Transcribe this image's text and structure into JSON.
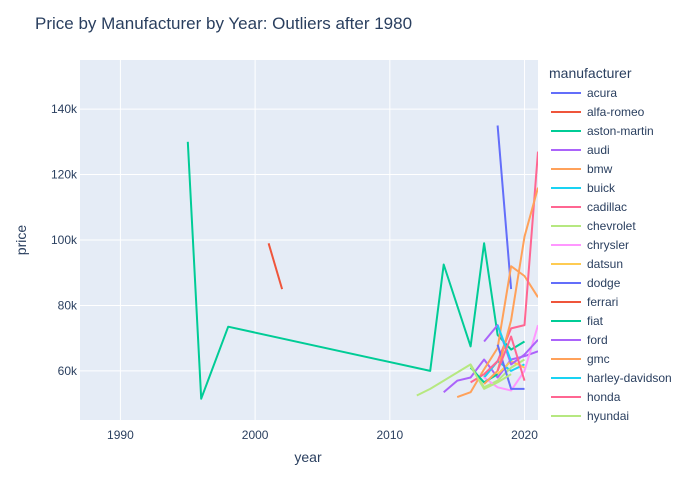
{
  "chart_data": {
    "type": "line",
    "title": "Price by Manufacturer by Year: Outliers after 1980",
    "xlabel": "year",
    "ylabel": "price",
    "xlim": [
      1987,
      2021
    ],
    "ylim": [
      45000,
      155000
    ],
    "x_ticks": [
      1990,
      2000,
      2010,
      2020
    ],
    "y_ticks": [
      60000,
      80000,
      100000,
      120000,
      140000
    ],
    "y_tick_labels": [
      "60k",
      "80k",
      "100k",
      "120k",
      "140k"
    ],
    "grid": true,
    "legend": {
      "title": "manufacturer",
      "placement": "right"
    },
    "series": [
      {
        "name": "acura",
        "color": "#636efa",
        "x": [
          2018,
          2019
        ],
        "y": [
          135000,
          85000
        ]
      },
      {
        "name": "alfa-romeo",
        "color": "#EF553B",
        "x": [
          2017,
          2018,
          2019
        ],
        "y": [
          58000,
          63000,
          60000
        ]
      },
      {
        "name": "aston-martin",
        "color": "#00cc96",
        "x": [
          1995,
          1996,
          1998,
          2013,
          2014,
          2016,
          2017,
          2018,
          2019,
          2020
        ],
        "y": [
          130000,
          51500,
          73500,
          60000,
          92500,
          67500,
          99000,
          71000,
          66500,
          69000
        ]
      },
      {
        "name": "audi",
        "color": "#ab63fa",
        "x": [
          2014,
          2015,
          2016,
          2017,
          2018,
          2019,
          2020,
          2021
        ],
        "y": [
          53500,
          57000,
          58000,
          63500,
          58000,
          63500,
          64500,
          66000
        ]
      },
      {
        "name": "bmw",
        "color": "#FFA15A",
        "x": [
          2015,
          2016,
          2017,
          2018,
          2019,
          2020,
          2021
        ],
        "y": [
          52000,
          53500,
          60500,
          67000,
          92000,
          89000,
          82500
        ]
      },
      {
        "name": "buick",
        "color": "#19d3f3",
        "x": [
          2017,
          2018,
          2019,
          2020
        ],
        "y": [
          58000,
          63000,
          60000,
          62000
        ]
      },
      {
        "name": "cadillac",
        "color": "#FF6692",
        "x": [
          2016,
          2017,
          2018,
          2019,
          2020,
          2021
        ],
        "y": [
          56500,
          59000,
          63000,
          73000,
          74000,
          127000
        ]
      },
      {
        "name": "chevrolet",
        "color": "#B6E880",
        "x": [
          2012,
          2013,
          2016,
          2017,
          2018,
          2019,
          2020
        ],
        "y": [
          52500,
          54500,
          62000,
          55000,
          57000,
          61000,
          63500
        ]
      },
      {
        "name": "chrysler",
        "color": "#FF97FF",
        "x": [
          2017,
          2018,
          2019,
          2020,
          2021
        ],
        "y": [
          58000,
          55000,
          54000,
          60000,
          74000
        ]
      },
      {
        "name": "datsun",
        "color": "#FECB52",
        "x": [
          2018,
          2019,
          2020
        ],
        "y": [
          59000,
          63000,
          61000
        ]
      },
      {
        "name": "dodge",
        "color": "#636efa",
        "x": [
          2018,
          2019,
          2020
        ],
        "y": [
          68000,
          54500,
          54500
        ]
      },
      {
        "name": "ferrari",
        "color": "#EF553B",
        "x": [
          2001,
          2002
        ],
        "y": [
          99000,
          85000
        ]
      },
      {
        "name": "fiat",
        "color": "#00cc96",
        "x": [
          2016,
          2017,
          2018
        ],
        "y": [
          61000,
          56500,
          59000
        ]
      },
      {
        "name": "ford",
        "color": "#ab63fa",
        "x": [
          2017,
          2018,
          2019,
          2020,
          2021
        ],
        "y": [
          69000,
          74000,
          62000,
          65000,
          69500
        ]
      },
      {
        "name": "gmc",
        "color": "#FFA15A",
        "x": [
          2017,
          2018,
          2019,
          2020,
          2021
        ],
        "y": [
          56000,
          60000,
          75500,
          101000,
          116000
        ]
      },
      {
        "name": "harley-davidson",
        "color": "#19d3f3",
        "x": [
          2018,
          2019
        ],
        "y": [
          74000,
          63000
        ]
      },
      {
        "name": "honda",
        "color": "#FF6692",
        "x": [
          2018,
          2019,
          2020
        ],
        "y": [
          60000,
          70500,
          57000
        ]
      },
      {
        "name": "hyundai",
        "color": "#B6E880",
        "x": [
          2016,
          2017,
          2018,
          2019
        ],
        "y": [
          61500,
          54500,
          56500,
          59000
        ]
      }
    ]
  }
}
